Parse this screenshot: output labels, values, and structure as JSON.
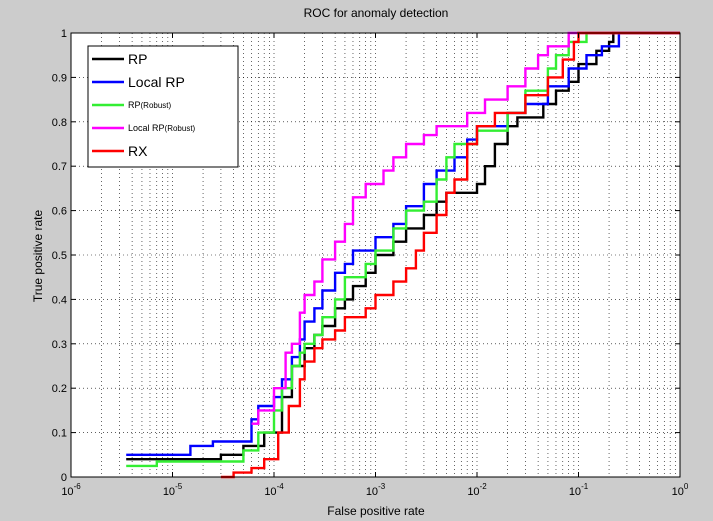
{
  "chart_data": {
    "type": "line",
    "title": "ROC for anomaly detection",
    "xlabel": "False positive rate",
    "ylabel": "True positive rate",
    "x_scale": "log",
    "xlim": [
      1e-06,
      1
    ],
    "ylim": [
      0,
      1
    ],
    "grid": true,
    "legend_position": "top-left",
    "x_ticks": [
      {
        "value": 1e-06,
        "base": "10",
        "exp": "-6"
      },
      {
        "value": 1e-05,
        "base": "10",
        "exp": "-5"
      },
      {
        "value": 0.0001,
        "base": "10",
        "exp": "-4"
      },
      {
        "value": 0.001,
        "base": "10",
        "exp": "-3"
      },
      {
        "value": 0.01,
        "base": "10",
        "exp": "-2"
      },
      {
        "value": 0.1,
        "base": "10",
        "exp": "-1"
      },
      {
        "value": 1,
        "base": "10",
        "exp": "0"
      }
    ],
    "y_ticks": [
      {
        "value": 0,
        "label": "0"
      },
      {
        "value": 0.1,
        "label": "0.1"
      },
      {
        "value": 0.2,
        "label": "0.2"
      },
      {
        "value": 0.3,
        "label": "0.3"
      },
      {
        "value": 0.4,
        "label": "0.4"
      },
      {
        "value": 0.5,
        "label": "0.5"
      },
      {
        "value": 0.6,
        "label": "0.6"
      },
      {
        "value": 0.7,
        "label": "0.7"
      },
      {
        "value": 0.8,
        "label": "0.8"
      },
      {
        "value": 0.9,
        "label": "0.9"
      },
      {
        "value": 1,
        "label": "1"
      }
    ],
    "series": [
      {
        "name": "RP",
        "sub": "",
        "color": "#000000",
        "legend_size": "large",
        "points": [
          [
            3.5e-06,
            0.04
          ],
          [
            3e-05,
            0.04
          ],
          [
            3e-05,
            0.05
          ],
          [
            5e-05,
            0.05
          ],
          [
            5e-05,
            0.07
          ],
          [
            8e-05,
            0.07
          ],
          [
            8e-05,
            0.1
          ],
          [
            0.00012,
            0.1
          ],
          [
            0.00012,
            0.18
          ],
          [
            0.00015,
            0.18
          ],
          [
            0.00015,
            0.25
          ],
          [
            0.0002,
            0.25
          ],
          [
            0.0002,
            0.29
          ],
          [
            0.00025,
            0.29
          ],
          [
            0.00025,
            0.32
          ],
          [
            0.0003,
            0.32
          ],
          [
            0.0003,
            0.34
          ],
          [
            0.0004,
            0.34
          ],
          [
            0.0004,
            0.38
          ],
          [
            0.0005,
            0.38
          ],
          [
            0.0005,
            0.4
          ],
          [
            0.0006,
            0.4
          ],
          [
            0.0006,
            0.43
          ],
          [
            0.0008,
            0.43
          ],
          [
            0.0008,
            0.46
          ],
          [
            0.001,
            0.46
          ],
          [
            0.001,
            0.5
          ],
          [
            0.0015,
            0.5
          ],
          [
            0.0015,
            0.53
          ],
          [
            0.002,
            0.53
          ],
          [
            0.002,
            0.56
          ],
          [
            0.003,
            0.56
          ],
          [
            0.003,
            0.59
          ],
          [
            0.004,
            0.59
          ],
          [
            0.004,
            0.62
          ],
          [
            0.005,
            0.62
          ],
          [
            0.005,
            0.64
          ],
          [
            0.01,
            0.64
          ],
          [
            0.01,
            0.66
          ],
          [
            0.012,
            0.66
          ],
          [
            0.012,
            0.7
          ],
          [
            0.015,
            0.7
          ],
          [
            0.015,
            0.75
          ],
          [
            0.02,
            0.75
          ],
          [
            0.02,
            0.79
          ],
          [
            0.025,
            0.79
          ],
          [
            0.025,
            0.81
          ],
          [
            0.045,
            0.81
          ],
          [
            0.045,
            0.84
          ],
          [
            0.06,
            0.84
          ],
          [
            0.06,
            0.87
          ],
          [
            0.08,
            0.87
          ],
          [
            0.08,
            0.89
          ],
          [
            0.1,
            0.89
          ],
          [
            0.1,
            0.93
          ],
          [
            0.15,
            0.93
          ],
          [
            0.15,
            0.96
          ],
          [
            0.2,
            0.96
          ],
          [
            0.2,
            0.98
          ],
          [
            0.22,
            0.98
          ],
          [
            0.22,
            1.0
          ],
          [
            1,
            1.0
          ]
        ]
      },
      {
        "name": "Local RP",
        "sub": "",
        "color": "#0000ff",
        "legend_size": "large",
        "points": [
          [
            3.5e-06,
            0.05
          ],
          [
            1.5e-05,
            0.05
          ],
          [
            1.5e-05,
            0.07
          ],
          [
            2.5e-05,
            0.07
          ],
          [
            2.5e-05,
            0.08
          ],
          [
            6e-05,
            0.08
          ],
          [
            6e-05,
            0.13
          ],
          [
            7e-05,
            0.13
          ],
          [
            7e-05,
            0.16
          ],
          [
            0.0001,
            0.16
          ],
          [
            0.0001,
            0.18
          ],
          [
            0.00012,
            0.18
          ],
          [
            0.00012,
            0.22
          ],
          [
            0.00015,
            0.22
          ],
          [
            0.00015,
            0.27
          ],
          [
            0.00018,
            0.27
          ],
          [
            0.00018,
            0.31
          ],
          [
            0.0002,
            0.31
          ],
          [
            0.0002,
            0.35
          ],
          [
            0.00025,
            0.35
          ],
          [
            0.00025,
            0.38
          ],
          [
            0.0003,
            0.38
          ],
          [
            0.0003,
            0.42
          ],
          [
            0.0004,
            0.42
          ],
          [
            0.0004,
            0.46
          ],
          [
            0.0005,
            0.46
          ],
          [
            0.0005,
            0.48
          ],
          [
            0.0006,
            0.48
          ],
          [
            0.0006,
            0.51
          ],
          [
            0.001,
            0.51
          ],
          [
            0.001,
            0.54
          ],
          [
            0.0015,
            0.54
          ],
          [
            0.0015,
            0.57
          ],
          [
            0.002,
            0.57
          ],
          [
            0.002,
            0.61
          ],
          [
            0.003,
            0.61
          ],
          [
            0.003,
            0.66
          ],
          [
            0.004,
            0.66
          ],
          [
            0.004,
            0.69
          ],
          [
            0.006,
            0.69
          ],
          [
            0.006,
            0.72
          ],
          [
            0.008,
            0.72
          ],
          [
            0.008,
            0.76
          ],
          [
            0.01,
            0.76
          ],
          [
            0.01,
            0.79
          ],
          [
            0.02,
            0.79
          ],
          [
            0.02,
            0.82
          ],
          [
            0.03,
            0.82
          ],
          [
            0.03,
            0.84
          ],
          [
            0.05,
            0.84
          ],
          [
            0.05,
            0.88
          ],
          [
            0.08,
            0.88
          ],
          [
            0.08,
            0.92
          ],
          [
            0.12,
            0.92
          ],
          [
            0.12,
            0.95
          ],
          [
            0.17,
            0.95
          ],
          [
            0.17,
            0.97
          ],
          [
            0.25,
            0.97
          ],
          [
            0.25,
            1.0
          ],
          [
            1,
            1.0
          ]
        ]
      },
      {
        "name": "RP",
        "sub": "(Robust)",
        "color": "#33ee33",
        "legend_size": "small",
        "points": [
          [
            3.5e-06,
            0.025
          ],
          [
            7e-06,
            0.025
          ],
          [
            7e-06,
            0.035
          ],
          [
            5e-05,
            0.035
          ],
          [
            5e-05,
            0.06
          ],
          [
            7e-05,
            0.06
          ],
          [
            7e-05,
            0.1
          ],
          [
            0.0001,
            0.1
          ],
          [
            0.0001,
            0.15
          ],
          [
            0.00012,
            0.15
          ],
          [
            0.00012,
            0.2
          ],
          [
            0.00015,
            0.2
          ],
          [
            0.00015,
            0.25
          ],
          [
            0.00018,
            0.25
          ],
          [
            0.00018,
            0.28
          ],
          [
            0.0002,
            0.28
          ],
          [
            0.0002,
            0.3
          ],
          [
            0.00025,
            0.3
          ],
          [
            0.00025,
            0.32
          ],
          [
            0.0003,
            0.32
          ],
          [
            0.0003,
            0.36
          ],
          [
            0.0004,
            0.36
          ],
          [
            0.0004,
            0.4
          ],
          [
            0.0005,
            0.4
          ],
          [
            0.0005,
            0.45
          ],
          [
            0.0008,
            0.45
          ],
          [
            0.0008,
            0.48
          ],
          [
            0.001,
            0.48
          ],
          [
            0.001,
            0.51
          ],
          [
            0.0015,
            0.51
          ],
          [
            0.0015,
            0.56
          ],
          [
            0.002,
            0.56
          ],
          [
            0.002,
            0.6
          ],
          [
            0.003,
            0.6
          ],
          [
            0.003,
            0.62
          ],
          [
            0.004,
            0.62
          ],
          [
            0.004,
            0.67
          ],
          [
            0.005,
            0.67
          ],
          [
            0.005,
            0.72
          ],
          [
            0.006,
            0.72
          ],
          [
            0.006,
            0.75
          ],
          [
            0.01,
            0.75
          ],
          [
            0.01,
            0.78
          ],
          [
            0.02,
            0.78
          ],
          [
            0.02,
            0.82
          ],
          [
            0.03,
            0.82
          ],
          [
            0.03,
            0.87
          ],
          [
            0.05,
            0.87
          ],
          [
            0.05,
            0.92
          ],
          [
            0.06,
            0.92
          ],
          [
            0.06,
            0.95
          ],
          [
            0.08,
            0.95
          ],
          [
            0.08,
            0.98
          ],
          [
            0.12,
            0.98
          ],
          [
            0.12,
            1.0
          ],
          [
            1,
            1.0
          ]
        ]
      },
      {
        "name": "Local RP",
        "sub": "(Robust)",
        "color": "#ff00ff",
        "legend_size": "small",
        "points": [
          [
            6e-05,
            0.12
          ],
          [
            7e-05,
            0.12
          ],
          [
            7e-05,
            0.15
          ],
          [
            0.0001,
            0.15
          ],
          [
            0.0001,
            0.2
          ],
          [
            0.00013,
            0.2
          ],
          [
            0.00013,
            0.28
          ],
          [
            0.00015,
            0.28
          ],
          [
            0.00015,
            0.3
          ],
          [
            0.00018,
            0.3
          ],
          [
            0.00018,
            0.37
          ],
          [
            0.0002,
            0.37
          ],
          [
            0.0002,
            0.41
          ],
          [
            0.00025,
            0.41
          ],
          [
            0.00025,
            0.44
          ],
          [
            0.0003,
            0.44
          ],
          [
            0.0003,
            0.49
          ],
          [
            0.0004,
            0.49
          ],
          [
            0.0004,
            0.53
          ],
          [
            0.0005,
            0.53
          ],
          [
            0.0005,
            0.57
          ],
          [
            0.0006,
            0.57
          ],
          [
            0.0006,
            0.63
          ],
          [
            0.0008,
            0.63
          ],
          [
            0.0008,
            0.66
          ],
          [
            0.0012,
            0.66
          ],
          [
            0.0012,
            0.69
          ],
          [
            0.0015,
            0.69
          ],
          [
            0.0015,
            0.72
          ],
          [
            0.002,
            0.72
          ],
          [
            0.002,
            0.75
          ],
          [
            0.003,
            0.75
          ],
          [
            0.003,
            0.77
          ],
          [
            0.004,
            0.77
          ],
          [
            0.004,
            0.79
          ],
          [
            0.008,
            0.79
          ],
          [
            0.008,
            0.82
          ],
          [
            0.012,
            0.82
          ],
          [
            0.012,
            0.85
          ],
          [
            0.02,
            0.85
          ],
          [
            0.02,
            0.88
          ],
          [
            0.03,
            0.88
          ],
          [
            0.03,
            0.92
          ],
          [
            0.04,
            0.92
          ],
          [
            0.04,
            0.95
          ],
          [
            0.05,
            0.95
          ],
          [
            0.05,
            0.97
          ],
          [
            0.08,
            0.97
          ],
          [
            0.08,
            1.0
          ],
          [
            1,
            1.0
          ]
        ]
      },
      {
        "name": "RX",
        "sub": "",
        "color": "#ff0000",
        "legend_size": "large",
        "points": [
          [
            3e-05,
            0.0
          ],
          [
            4e-05,
            0.0
          ],
          [
            4e-05,
            0.01
          ],
          [
            6e-05,
            0.01
          ],
          [
            6e-05,
            0.02
          ],
          [
            8e-05,
            0.02
          ],
          [
            8e-05,
            0.04
          ],
          [
            0.00011,
            0.04
          ],
          [
            0.00011,
            0.1
          ],
          [
            0.00014,
            0.1
          ],
          [
            0.00014,
            0.16
          ],
          [
            0.00018,
            0.16
          ],
          [
            0.00018,
            0.22
          ],
          [
            0.0002,
            0.22
          ],
          [
            0.0002,
            0.26
          ],
          [
            0.00025,
            0.26
          ],
          [
            0.00025,
            0.29
          ],
          [
            0.0003,
            0.29
          ],
          [
            0.0003,
            0.31
          ],
          [
            0.0004,
            0.31
          ],
          [
            0.0004,
            0.33
          ],
          [
            0.0005,
            0.33
          ],
          [
            0.0005,
            0.36
          ],
          [
            0.0008,
            0.36
          ],
          [
            0.0008,
            0.38
          ],
          [
            0.001,
            0.38
          ],
          [
            0.001,
            0.41
          ],
          [
            0.0015,
            0.41
          ],
          [
            0.0015,
            0.44
          ],
          [
            0.002,
            0.44
          ],
          [
            0.002,
            0.47
          ],
          [
            0.0025,
            0.47
          ],
          [
            0.0025,
            0.51
          ],
          [
            0.003,
            0.51
          ],
          [
            0.003,
            0.55
          ],
          [
            0.004,
            0.55
          ],
          [
            0.004,
            0.59
          ],
          [
            0.005,
            0.59
          ],
          [
            0.005,
            0.64
          ],
          [
            0.006,
            0.64
          ],
          [
            0.006,
            0.67
          ],
          [
            0.008,
            0.67
          ],
          [
            0.008,
            0.75
          ],
          [
            0.01,
            0.75
          ],
          [
            0.01,
            0.79
          ],
          [
            0.015,
            0.79
          ],
          [
            0.015,
            0.82
          ],
          [
            0.03,
            0.82
          ],
          [
            0.03,
            0.86
          ],
          [
            0.05,
            0.86
          ],
          [
            0.05,
            0.9
          ],
          [
            0.07,
            0.9
          ],
          [
            0.07,
            0.94
          ],
          [
            0.09,
            0.94
          ],
          [
            0.09,
            0.98
          ],
          [
            0.1,
            0.98
          ],
          [
            0.1,
            1.0
          ],
          [
            1,
            1.0
          ]
        ]
      }
    ]
  }
}
